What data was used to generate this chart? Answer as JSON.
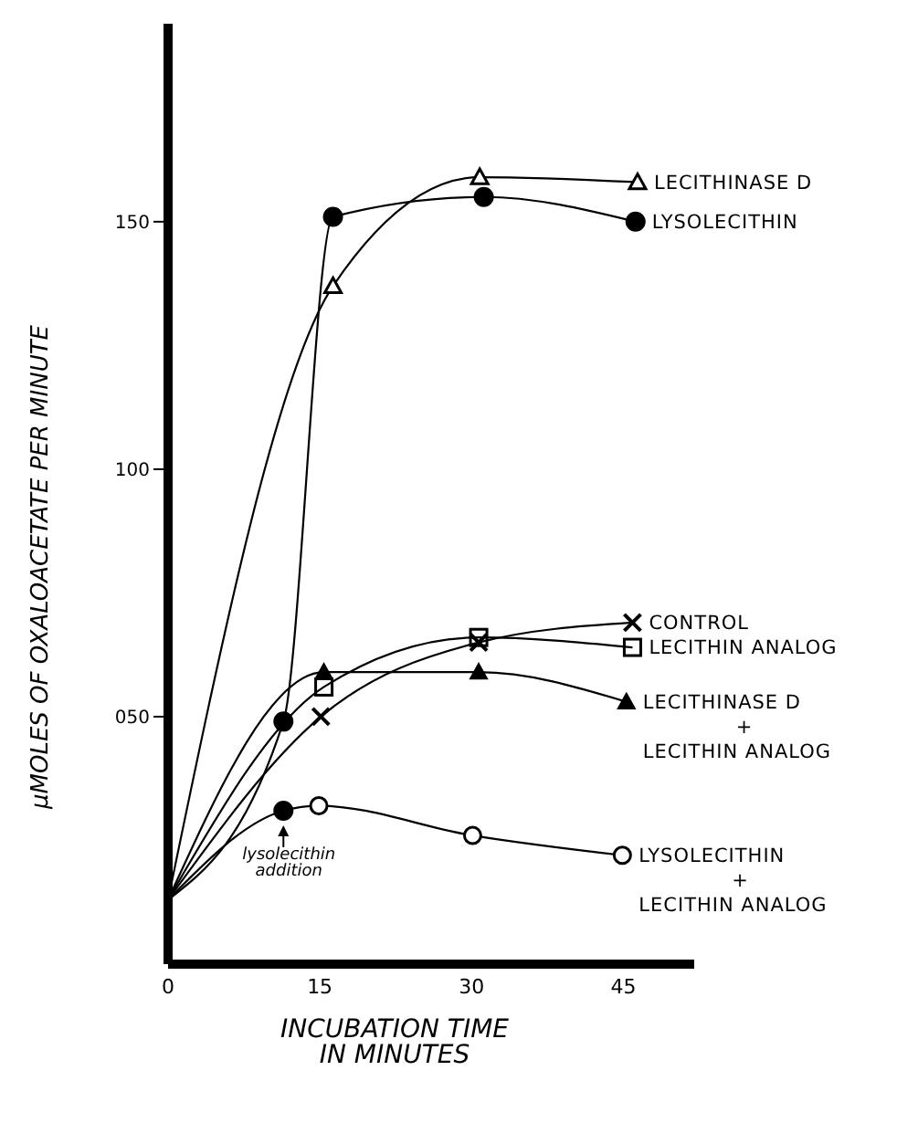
{
  "chart_data": {
    "type": "line",
    "xlabel": "INCUBATION TIME IN MINUTES",
    "ylabel": "μMOLES OF OXALOACETATE PER MINUTE",
    "xlim": [
      0,
      52
    ],
    "xticks": [
      0,
      15,
      30,
      45
    ],
    "ylim": [
      0,
      190
    ],
    "yticks": [
      {
        "value": 50,
        "label": "050"
      },
      {
        "value": 100,
        "label": "100"
      },
      {
        "value": 150,
        "label": "150"
      }
    ],
    "series": [
      {
        "name": "LECITHINASE D",
        "color": "#000000",
        "x": [
          0,
          16.3,
          30.8,
          46.4
        ],
        "values": [
          13,
          137,
          159,
          158
        ],
        "marker": [
          "none",
          "triangle",
          "triangle",
          "triangle"
        ]
      },
      {
        "name": "LYSOLECITHIN",
        "color": "#000000",
        "x": [
          0,
          11.4,
          16.3,
          31.2,
          46.2
        ],
        "values": [
          13,
          49,
          151,
          155,
          150
        ],
        "marker": [
          "none",
          "circle-filled",
          "circle-filled",
          "circle-filled",
          "circle-filled"
        ]
      },
      {
        "name": "CONTROL",
        "color": "#000000",
        "x": [
          0,
          15.1,
          30.7,
          45.9
        ],
        "values": [
          13,
          50,
          65,
          69
        ],
        "marker": [
          "none",
          "cross",
          "cross",
          "cross"
        ]
      },
      {
        "name": "LECITHIN ANALOG",
        "color": "#000000",
        "x": [
          0,
          15.4,
          30.7,
          45.9
        ],
        "values": [
          13,
          56,
          66,
          64
        ],
        "marker": [
          "none",
          "square",
          "square",
          "square"
        ]
      },
      {
        "name": "LECITHINASE D + LECITHIN ANALOG",
        "color": "#000000",
        "x": [
          0,
          15.4,
          30.7,
          45.3
        ],
        "values": [
          13,
          59,
          59,
          53
        ],
        "marker": [
          "none",
          "triangle-filled",
          "triangle-filled",
          "triangle-filled"
        ]
      },
      {
        "name": "LYSOLECITHIN + LECITHIN ANALOG",
        "color": "#000000",
        "x": [
          0,
          11.4,
          14.9,
          30.1,
          44.9
        ],
        "values": [
          13,
          31,
          32,
          26,
          22
        ],
        "marker": [
          "none",
          "circle-filled",
          "circle",
          "circle",
          "circle"
        ]
      }
    ],
    "annotations": [
      {
        "text": "lysolecithin addition",
        "x": 11.4,
        "y": 31
      }
    ]
  }
}
